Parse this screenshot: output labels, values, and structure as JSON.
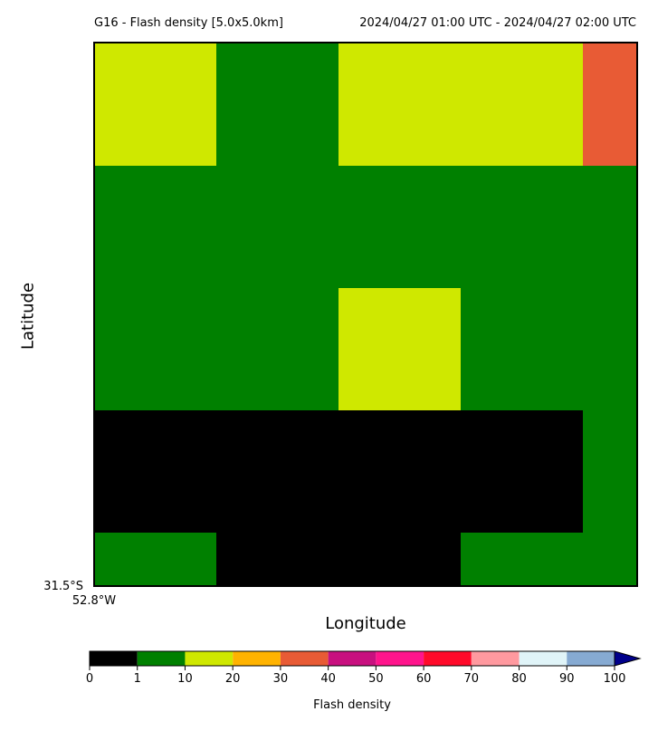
{
  "chart_data": {
    "type": "heatmap",
    "title_left": "G16 - Flash density [5.0x5.0km]",
    "title_right": "2024/04/27 01:00 UTC - 2024/04/27 02:00 UTC",
    "xlabel": "Longitude",
    "ylabel": "Latitude",
    "corner_lat_label": "31.5°S",
    "corner_lon_label": "52.8°W",
    "colorbar_label": "Flash density",
    "colorbar_ticks": [
      "0",
      "1",
      "10",
      "20",
      "30",
      "40",
      "50",
      "60",
      "70",
      "80",
      "90",
      "100"
    ],
    "colorbar_colors": [
      "#000000",
      "#008000",
      "#cfe800",
      "#ffb300",
      "#e85b35",
      "#c8107f",
      "#ff148c",
      "#ff0a2a",
      "#ff999f",
      "#e0f4f8",
      "#86aad2"
    ],
    "colorbar_extend_color": "#00008b",
    "columns": 5,
    "rows": 5,
    "grid": [
      [
        10,
        1,
        10,
        10,
        30
      ],
      [
        1,
        1,
        1,
        1,
        1
      ],
      [
        1,
        1,
        10,
        1,
        1
      ],
      [
        0,
        0,
        0,
        0,
        1
      ],
      [
        1,
        0,
        0,
        1,
        1
      ]
    ]
  }
}
